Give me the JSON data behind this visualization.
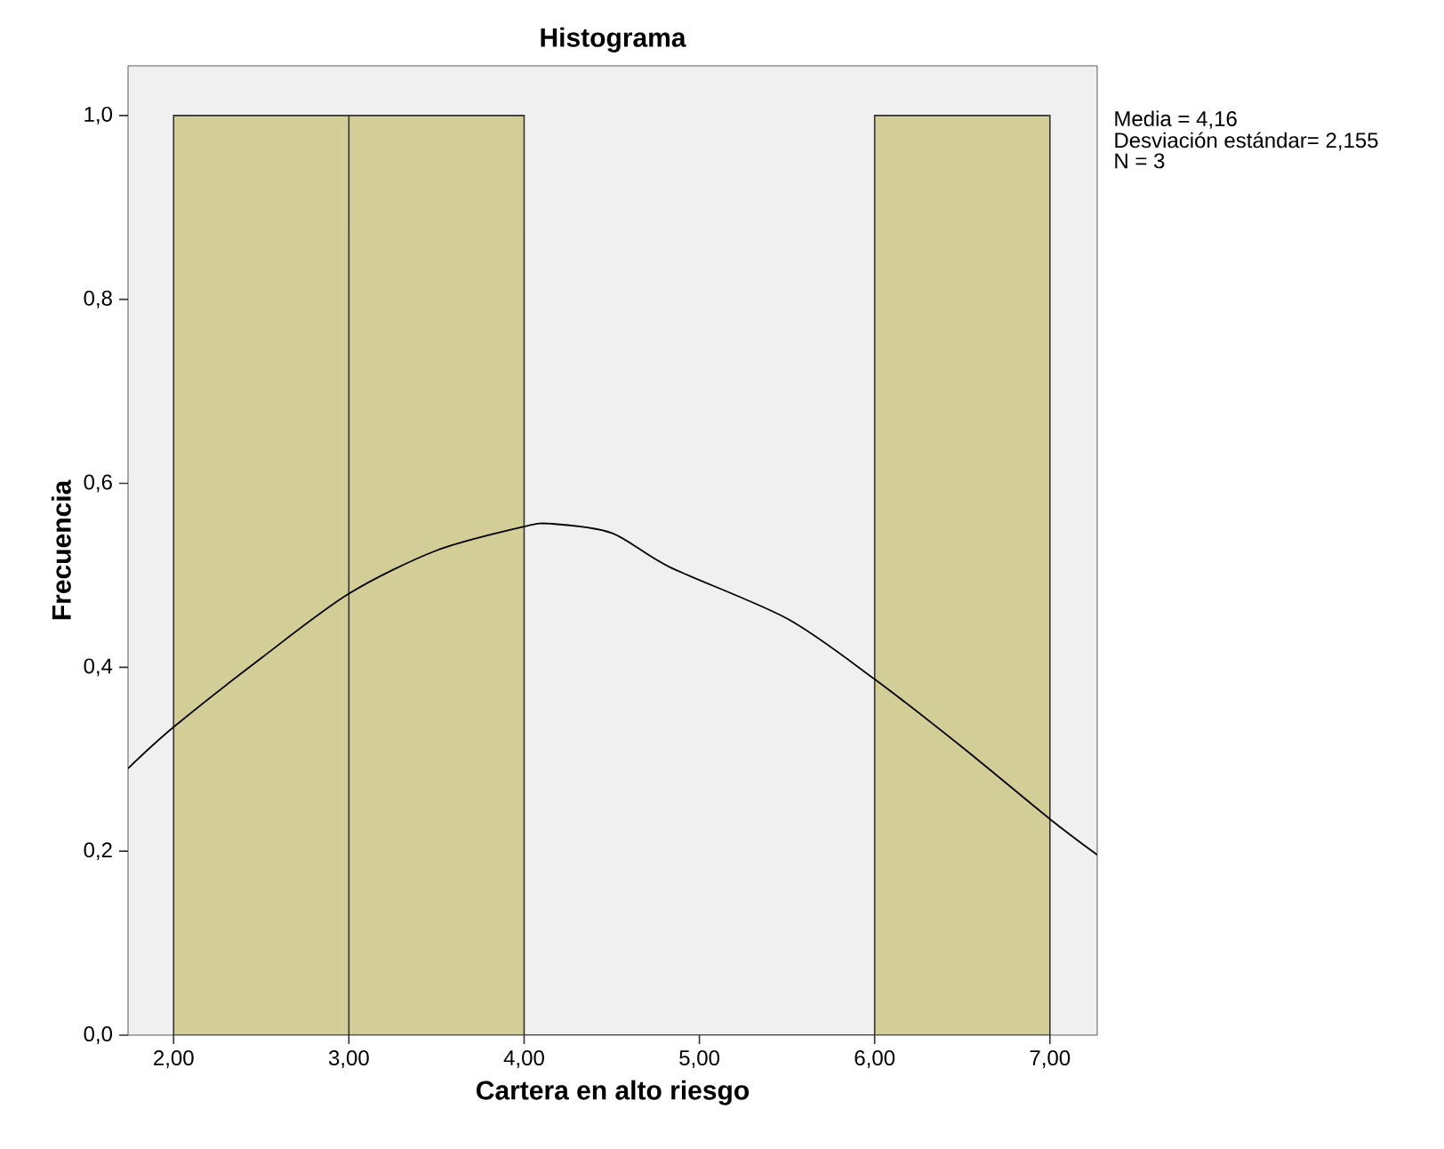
{
  "chart_data": {
    "type": "histogram",
    "title": "Histograma",
    "xlabel": "Cartera en alto riesgo",
    "ylabel": "Frecuencia",
    "bins": [
      2,
      3,
      4,
      5,
      6,
      7
    ],
    "values": [
      1,
      1,
      0,
      0,
      1
    ],
    "color": "#d3ce97",
    "series": [
      {
        "type": "line",
        "color": "#000000",
        "x": [
          1.74,
          2.0,
          2.5,
          3.0,
          3.5,
          4.0,
          4.16,
          4.5,
          4.83,
          5.5,
          6.0,
          6.5,
          7.0,
          7.27
        ],
        "values": [
          0.29,
          0.335,
          0.41,
          0.48,
          0.527,
          0.553,
          0.556,
          0.546,
          0.509,
          0.453,
          0.387,
          0.313,
          0.235,
          0.196
        ]
      }
    ],
    "xlim": [
      1.74,
      7.27
    ],
    "ylim": [
      0,
      1.054
    ],
    "xticks": [
      {
        "value": 2,
        "label": "2,00"
      },
      {
        "value": 3,
        "label": "3,00"
      },
      {
        "value": 4,
        "label": "4,00"
      },
      {
        "value": 5,
        "label": "5,00"
      },
      {
        "value": 6,
        "label": "6,00"
      },
      {
        "value": 7,
        "label": "7,00"
      }
    ],
    "yticks": [
      {
        "value": 0,
        "label": "0,0"
      },
      {
        "value": 0.2,
        "label": "0,2"
      },
      {
        "value": 0.4,
        "label": "0,4"
      },
      {
        "value": 0.6,
        "label": "0,6"
      },
      {
        "value": 0.8,
        "label": "0,8"
      },
      {
        "value": 1.0,
        "label": "1,0"
      }
    ],
    "annotations": [
      "Media = 4,16",
      "Desviación estándar= 2,155",
      "N = 3"
    ]
  }
}
